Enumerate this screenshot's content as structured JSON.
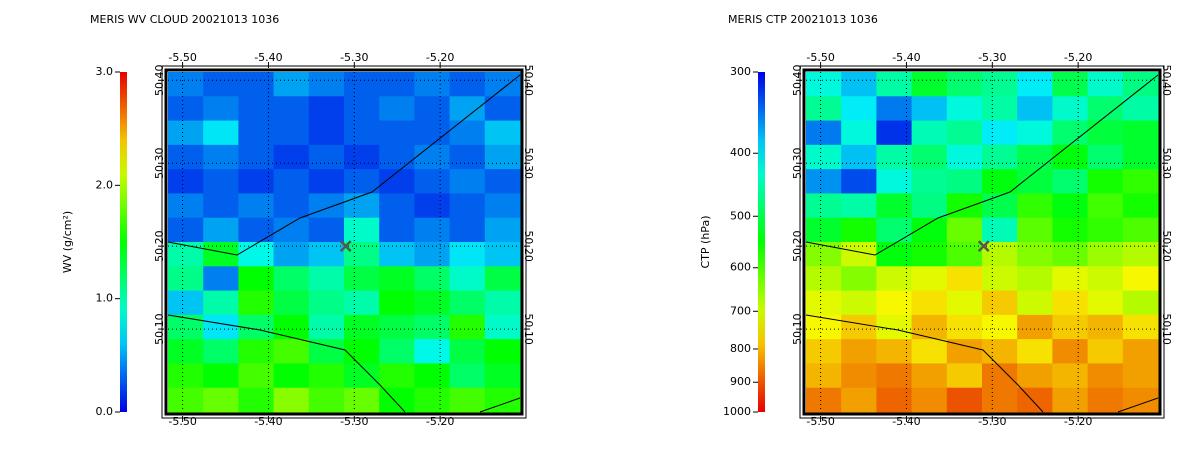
{
  "chart_data": [
    {
      "type": "heatmap",
      "title": "MERIS WV CLOUD 20021013 1036",
      "colorbar_label": "WV (g/cm²)",
      "colormap": "rainbow",
      "colorbar_log": false,
      "colorbar_inverted": false,
      "zlim": [
        0,
        3
      ],
      "zticks": [
        {
          "value": 0,
          "label": "0.0"
        },
        {
          "value": 1,
          "label": "1.0"
        },
        {
          "value": 2,
          "label": "2.0"
        },
        {
          "value": 3,
          "label": "3.0"
        }
      ],
      "xlim": [
        -5.517,
        -5.107
      ],
      "ylim": [
        50.0,
        50.41
      ],
      "xticks": [
        {
          "value": -5.5,
          "label": "-5.50"
        },
        {
          "value": -5.4,
          "label": "-5.40"
        },
        {
          "value": -5.3,
          "label": "-5.30"
        },
        {
          "value": -5.2,
          "label": "-5.20"
        }
      ],
      "yticks": [
        {
          "value": 50.1,
          "label": "50.10"
        },
        {
          "value": 50.2,
          "label": "50.20"
        },
        {
          "value": 50.3,
          "label": "50.30"
        },
        {
          "value": 50.4,
          "label": "50.40"
        }
      ],
      "grid": true,
      "marker_x": -5.31,
      "marker_y": 50.2,
      "z": [
        [
          0.4,
          0.3,
          0.3,
          0.5,
          0.4,
          0.3,
          0.3,
          0.4,
          0.3,
          0.4
        ],
        [
          0.3,
          0.4,
          0.3,
          0.3,
          0.2,
          0.3,
          0.4,
          0.3,
          0.5,
          0.3
        ],
        [
          0.5,
          0.7,
          0.3,
          0.3,
          0.2,
          0.3,
          0.3,
          0.3,
          0.4,
          0.6
        ],
        [
          0.3,
          0.4,
          0.3,
          0.2,
          0.3,
          0.2,
          0.3,
          0.4,
          0.3,
          0.5
        ],
        [
          0.2,
          0.3,
          0.2,
          0.3,
          0.2,
          0.3,
          0.2,
          0.3,
          0.4,
          0.3
        ],
        [
          0.4,
          0.3,
          0.4,
          0.3,
          0.4,
          0.5,
          0.3,
          0.2,
          0.3,
          0.4
        ],
        [
          0.3,
          0.5,
          0.3,
          0.4,
          0.3,
          0.9,
          0.3,
          0.4,
          0.3,
          0.5
        ],
        [
          1.0,
          1.4,
          0.8,
          0.5,
          0.6,
          1.1,
          0.6,
          0.5,
          0.7,
          0.6
        ],
        [
          1.1,
          0.4,
          1.5,
          1.2,
          1.0,
          1.3,
          1.4,
          1.2,
          0.9,
          1.3
        ],
        [
          0.6,
          1.0,
          1.6,
          1.3,
          1.1,
          1.0,
          1.5,
          1.4,
          1.2,
          1.0
        ],
        [
          1.2,
          0.7,
          1.2,
          1.5,
          1.0,
          1.4,
          1.3,
          1.2,
          1.6,
          0.9
        ],
        [
          1.4,
          1.2,
          1.6,
          1.7,
          1.3,
          1.5,
          1.2,
          0.8,
          1.3,
          1.5
        ],
        [
          1.6,
          1.5,
          1.7,
          1.5,
          1.6,
          1.4,
          1.6,
          1.5,
          1.2,
          1.4
        ],
        [
          1.7,
          1.8,
          1.6,
          1.9,
          1.7,
          1.8,
          1.5,
          1.6,
          1.7,
          1.6
        ]
      ]
    },
    {
      "type": "heatmap",
      "title": "MERIS CTP 20021013 1036",
      "colorbar_label": "CTP (hPa)",
      "colormap": "rainbow",
      "colorbar_log": true,
      "colorbar_inverted": true,
      "zlim": [
        300,
        1000
      ],
      "zticks": [
        300,
        400,
        500,
        600,
        700,
        800,
        900,
        1000
      ],
      "xlim": [
        -5.517,
        -5.107
      ],
      "ylim": [
        50.0,
        50.41
      ],
      "xticks": [
        {
          "value": -5.5,
          "label": "-5.50"
        },
        {
          "value": -5.4,
          "label": "-5.40"
        },
        {
          "value": -5.3,
          "label": "-5.30"
        },
        {
          "value": -5.2,
          "label": "-5.20"
        }
      ],
      "yticks": [
        {
          "value": 50.1,
          "label": "50.10"
        },
        {
          "value": 50.2,
          "label": "50.20"
        },
        {
          "value": 50.3,
          "label": "50.30"
        },
        {
          "value": 50.4,
          "label": "50.40"
        }
      ],
      "grid": true,
      "marker_x": -5.31,
      "marker_y": 50.2,
      "z": [
        [
          420,
          380,
          450,
          520,
          480,
          460,
          400,
          500,
          430,
          470
        ],
        [
          460,
          400,
          350,
          380,
          420,
          450,
          380,
          430,
          480,
          450
        ],
        [
          350,
          420,
          320,
          440,
          460,
          400,
          420,
          480,
          510,
          520
        ],
        [
          430,
          380,
          450,
          480,
          420,
          460,
          500,
          540,
          480,
          520
        ],
        [
          360,
          330,
          420,
          460,
          470,
          540,
          510,
          480,
          560,
          580
        ],
        [
          460,
          450,
          520,
          470,
          560,
          500,
          580,
          540,
          590,
          560
        ],
        [
          520,
          560,
          480,
          540,
          620,
          440,
          610,
          560,
          580,
          600
        ],
        [
          640,
          700,
          540,
          560,
          600,
          680,
          640,
          620,
          660,
          680
        ],
        [
          680,
          640,
          700,
          720,
          760,
          700,
          680,
          720,
          700,
          740
        ],
        [
          720,
          700,
          740,
          760,
          720,
          780,
          700,
          760,
          720,
          680
        ],
        [
          740,
          780,
          720,
          800,
          760,
          740,
          820,
          780,
          800,
          760
        ],
        [
          780,
          820,
          800,
          760,
          820,
          800,
          760,
          840,
          780,
          820
        ],
        [
          800,
          840,
          860,
          820,
          780,
          860,
          820,
          800,
          840,
          820
        ],
        [
          860,
          820,
          880,
          840,
          900,
          860,
          880,
          820,
          860,
          840
        ]
      ]
    }
  ]
}
